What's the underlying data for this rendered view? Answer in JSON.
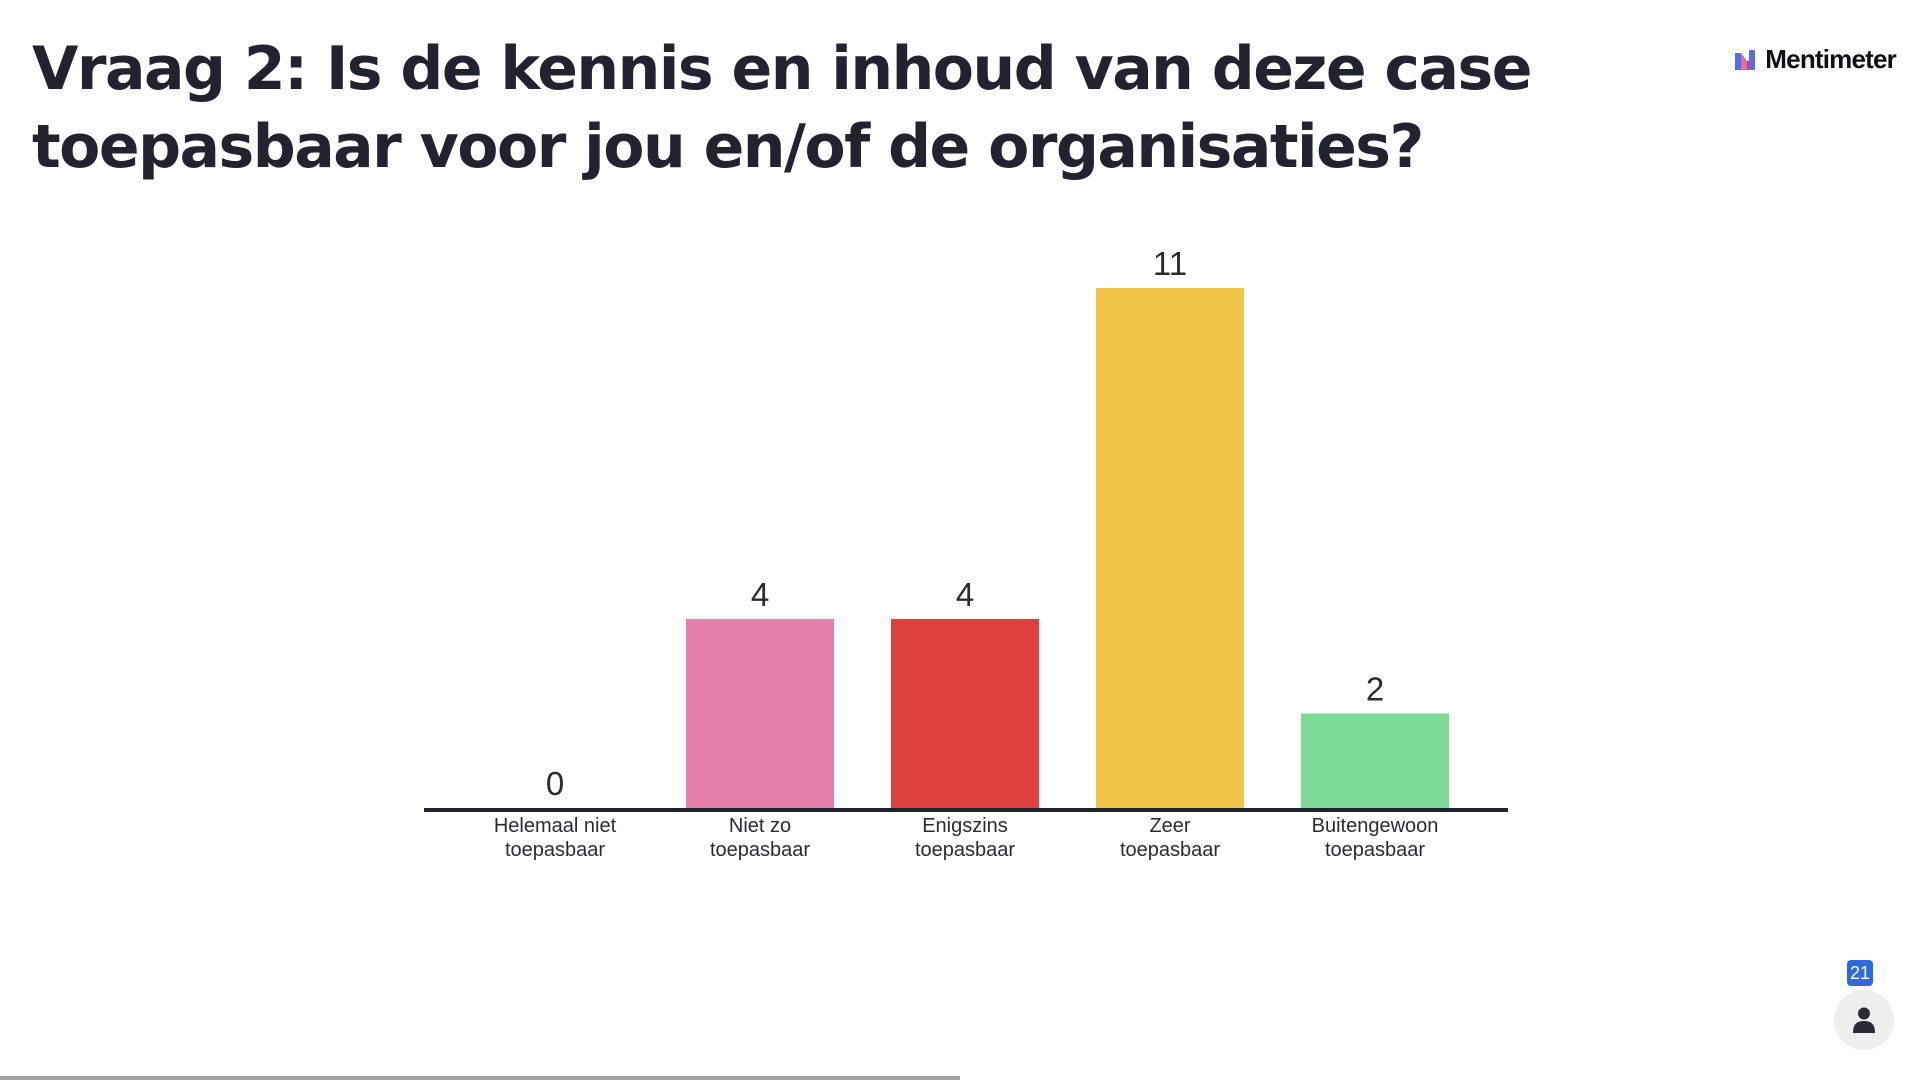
{
  "slide": {
    "title": "Vraag 2: Is de kennis en inhoud van deze case toepasbaar voor jou en/of de organisaties?",
    "brand": "Mentimeter",
    "participant_count": "21",
    "progress": 0.5
  },
  "icons": {
    "brand": "mentimeter-logo-icon",
    "participants": "person-icon"
  },
  "colors": {
    "title": "#23232f",
    "axis": "#23232f",
    "badge": "#2d6ae0"
  },
  "chart_data": {
    "type": "bar",
    "categories": [
      "Helemaal niet toepasbaar",
      "Niet zo toepasbaar",
      "Enigszins toepasbaar",
      "Zeer toepasbaar",
      "Buitengewoon toepasbaar"
    ],
    "category_lines": [
      [
        "Helemaal niet",
        "toepasbaar"
      ],
      [
        "Niet zo",
        "toepasbaar"
      ],
      [
        "Enigszins",
        "toepasbaar"
      ],
      [
        "Zeer",
        "toepasbaar"
      ],
      [
        "Buitengewoon",
        "toepasbaar"
      ]
    ],
    "values": [
      0,
      4,
      4,
      11,
      2
    ],
    "colors": [
      "#5b6fe0",
      "#e37fa9",
      "#dd413d",
      "#f0c548",
      "#7ddb95"
    ],
    "value_labels": [
      "0",
      "4",
      "4",
      "11",
      "2"
    ],
    "ylim": [
      0,
      11
    ],
    "grid": false,
    "legend": "none"
  }
}
